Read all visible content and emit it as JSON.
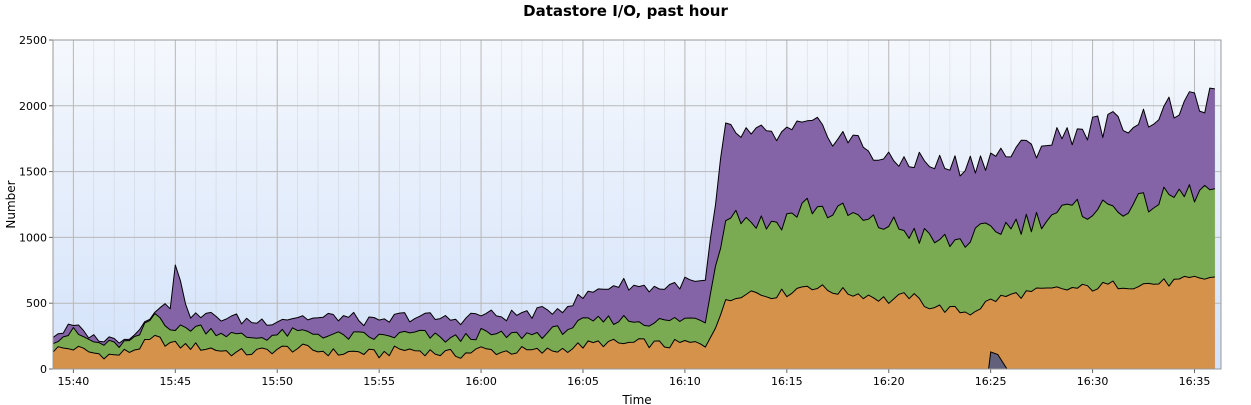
{
  "chart_data": {
    "type": "area",
    "stacked": true,
    "title": "Datastore I/O, past hour",
    "xlabel": "Time",
    "ylabel": "Number",
    "ylim": [
      0,
      2500
    ],
    "yticks": [
      0,
      500,
      1000,
      1500,
      2000,
      2500
    ],
    "xlim": [
      "15:39",
      "16:36"
    ],
    "xticks": [
      "15:40",
      "15:45",
      "15:50",
      "15:55",
      "16:00",
      "16:05",
      "16:10",
      "16:15",
      "16:20",
      "16:25",
      "16:30",
      "16:35"
    ],
    "grid": true,
    "colors": {
      "orange": "#d4924a",
      "green": "#7aaa52",
      "purple": "#8464a6",
      "dark": "#62607a",
      "bg_top": "#f5f8fd",
      "bg_bottom": "#d3e2fa",
      "grid": "#b8b8b8"
    },
    "times": [
      "15:39",
      "15:40",
      "15:41",
      "15:42",
      "15:43",
      "15:44",
      "15:45",
      "15:46",
      "15:47",
      "15:48",
      "15:49",
      "15:50",
      "15:51",
      "15:52",
      "15:53",
      "15:54",
      "15:55",
      "15:56",
      "15:57",
      "15:58",
      "15:59",
      "16:00",
      "16:01",
      "16:02",
      "16:03",
      "16:04",
      "16:05",
      "16:06",
      "16:07",
      "16:08",
      "16:09",
      "16:10",
      "16:11",
      "16:12",
      "16:13",
      "16:14",
      "16:15",
      "16:16",
      "16:17",
      "16:18",
      "16:19",
      "16:20",
      "16:21",
      "16:22",
      "16:23",
      "16:24",
      "16:25",
      "16:26",
      "16:27",
      "16:28",
      "16:29",
      "16:30",
      "16:31",
      "16:32",
      "16:33",
      "16:34",
      "16:35",
      "16:36"
    ],
    "totals": {
      "orange": [
        150,
        160,
        120,
        100,
        150,
        230,
        180,
        170,
        150,
        120,
        130,
        150,
        160,
        140,
        120,
        130,
        110,
        150,
        140,
        120,
        110,
        150,
        130,
        140,
        130,
        150,
        180,
        200,
        190,
        200,
        180,
        200,
        180,
        500,
        600,
        560,
        580,
        640,
        600,
        580,
        560,
        520,
        560,
        480,
        450,
        430,
        520,
        560,
        580,
        600,
        610,
        620,
        640,
        640,
        650,
        660,
        680,
        700
      ],
      "green": [
        230,
        280,
        200,
        180,
        210,
        420,
        300,
        320,
        290,
        250,
        240,
        260,
        280,
        270,
        250,
        250,
        240,
        260,
        270,
        230,
        230,
        270,
        250,
        260,
        270,
        300,
        350,
        370,
        380,
        360,
        360,
        380,
        380,
        1200,
        1150,
        1100,
        1150,
        1250,
        1200,
        1180,
        1100,
        1100,
        1050,
        980,
        960,
        990,
        1050,
        1100,
        1120,
        1180,
        1200,
        1220,
        1230,
        1240,
        1270,
        1320,
        1340,
        1360
      ],
      "purple": [
        260,
        320,
        230,
        220,
        260,
        440,
        500,
        400,
        400,
        380,
        360,
        380,
        400,
        380,
        400,
        380,
        340,
        400,
        400,
        380,
        380,
        420,
        400,
        420,
        430,
        470,
        550,
        620,
        650,
        620,
        620,
        660,
        650,
        1800,
        1780,
        1760,
        1780,
        1830,
        1800,
        1750,
        1680,
        1550,
        1600,
        1560,
        1540,
        1560,
        1620,
        1640,
        1680,
        1740,
        1800,
        1840,
        1870,
        1880,
        1930,
        1980,
        2020,
        2050
      ]
    },
    "spikes": [
      {
        "series": "purple",
        "time": "15:45",
        "value": 790
      }
    ],
    "dark_series": {
      "time": "16:25",
      "peak": 130
    }
  }
}
